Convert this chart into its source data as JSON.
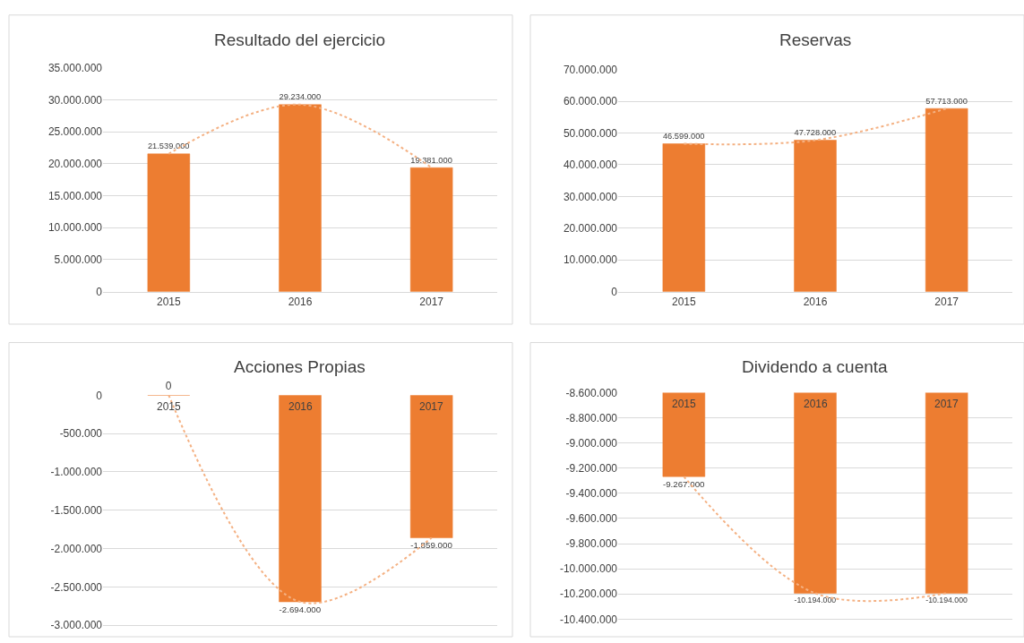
{
  "chart_data": [
    {
      "type": "bar",
      "title": "Resultado del ejercicio",
      "categories": [
        "2015",
        "2016",
        "2017"
      ],
      "grid": "y",
      "ylim": [
        0,
        35000000
      ],
      "yticks": [
        {
          "value": 0,
          "label": "0"
        },
        {
          "value": 5000000,
          "label": "5.000.000"
        },
        {
          "value": 10000000,
          "label": "10.000.000"
        },
        {
          "value": 15000000,
          "label": "15.000.000"
        },
        {
          "value": 20000000,
          "label": "20.000.000"
        },
        {
          "value": 25000000,
          "label": "25.000.000"
        },
        {
          "value": 30000000,
          "label": "30.000.000"
        },
        {
          "value": 35000000,
          "label": "35.000.000"
        }
      ],
      "series": [
        {
          "color": "#ed7d31",
          "values": [
            21539000,
            29234000,
            19381000
          ],
          "value_labels": [
            "21.539.000",
            "29.234.000",
            "19.381.000"
          ]
        },
        {
          "type": "line",
          "color": "#f4b183",
          "line_style": "dotted",
          "values": [
            21539000,
            29234000,
            19381000
          ]
        }
      ]
    },
    {
      "type": "bar",
      "title": "Reservas",
      "categories": [
        "2015",
        "2016",
        "2017"
      ],
      "grid": "y",
      "ylim": [
        0,
        70000000
      ],
      "yticks": [
        {
          "value": 0,
          "label": "0"
        },
        {
          "value": 10000000,
          "label": "10.000.000"
        },
        {
          "value": 20000000,
          "label": "20.000.000"
        },
        {
          "value": 30000000,
          "label": "30.000.000"
        },
        {
          "value": 40000000,
          "label": "40.000.000"
        },
        {
          "value": 50000000,
          "label": "50.000.000"
        },
        {
          "value": 60000000,
          "label": "60.000.000"
        },
        {
          "value": 70000000,
          "label": "70.000.000"
        }
      ],
      "series": [
        {
          "color": "#ed7d31",
          "values": [
            46599000,
            47728000,
            57713000
          ],
          "value_labels": [
            "46.599.000",
            "47.728.000",
            "57.713.000"
          ]
        },
        {
          "type": "line",
          "color": "#f4b183",
          "line_style": "dotted",
          "values": [
            46599000,
            47728000,
            57713000
          ]
        }
      ]
    },
    {
      "type": "bar",
      "title": "Acciones Propias",
      "categories": [
        "2015",
        "2016",
        "2017"
      ],
      "grid": "y",
      "ylim": [
        -3000000,
        0
      ],
      "yticks": [
        {
          "value": 0,
          "label": "0"
        },
        {
          "value": -500000,
          "label": "-500.000"
        },
        {
          "value": -1000000,
          "label": "-1.000.000"
        },
        {
          "value": -1500000,
          "label": "-1.500.000"
        },
        {
          "value": -2000000,
          "label": "-2.000.000"
        },
        {
          "value": -2500000,
          "label": "-2.500.000"
        },
        {
          "value": -3000000,
          "label": "-3.000.000"
        }
      ],
      "series": [
        {
          "color": "#ed7d31",
          "values": [
            0,
            -2694000,
            -1859000
          ],
          "value_labels": [
            "0",
            "-2.694.000",
            "-1.859.000"
          ]
        },
        {
          "type": "line",
          "color": "#f4b183",
          "line_style": "dotted",
          "values": [
            0,
            -2694000,
            -1859000
          ]
        }
      ]
    },
    {
      "type": "bar",
      "title": "Dividendo a cuenta",
      "categories": [
        "2015",
        "2016",
        "2017"
      ],
      "grid": "y",
      "ylim": [
        -10400000,
        -8600000
      ],
      "yticks": [
        {
          "value": -8600000,
          "label": "-8.600.000"
        },
        {
          "value": -8800000,
          "label": "-8.800.000"
        },
        {
          "value": -9000000,
          "label": "-9.000.000"
        },
        {
          "value": -9200000,
          "label": "-9.200.000"
        },
        {
          "value": -9400000,
          "label": "-9.400.000"
        },
        {
          "value": -9600000,
          "label": "-9.600.000"
        },
        {
          "value": -9800000,
          "label": "-9.800.000"
        },
        {
          "value": -10000000,
          "label": "-10.000.000"
        },
        {
          "value": -10200000,
          "label": "-10.200.000"
        },
        {
          "value": -10400000,
          "label": "-10.400.000"
        }
      ],
      "series": [
        {
          "color": "#ed7d31",
          "values": [
            -9267000,
            -10194000,
            -10194000
          ],
          "value_labels": [
            "-9.267.000",
            "-10.194.000",
            "-10.194.000"
          ]
        },
        {
          "type": "line",
          "color": "#f4b183",
          "line_style": "dotted",
          "values": [
            -9267000,
            -10194000,
            -10194000
          ]
        }
      ]
    }
  ]
}
